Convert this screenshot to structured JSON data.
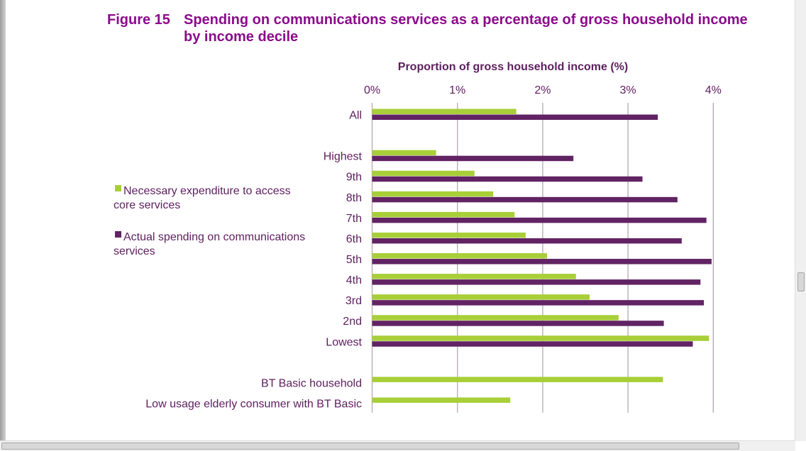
{
  "figure": {
    "number": "Figure 15",
    "title": "Spending on communications services as a percentage of gross household income by income decile"
  },
  "colors": {
    "title": "#8b0a8b",
    "text": "#5f2060",
    "necessary": "#a8cf38",
    "actual": "#612363",
    "grid": "#b8a6b8"
  },
  "chart_data": {
    "type": "bar",
    "orientation": "horizontal",
    "title": "Spending on communications services as a percentage of gross household income by income decile",
    "xlabel": "Proportion of gross household income (%)",
    "xlabel_position": "top",
    "ylabel": "",
    "xlim": [
      0,
      4
    ],
    "xticks": [
      0,
      1,
      2,
      3,
      4
    ],
    "xtick_labels": [
      "0%",
      "1%",
      "2%",
      "3%",
      "4%"
    ],
    "grid": "vertical",
    "legend_position": "left",
    "categories": [
      "All",
      "",
      "Highest",
      "9th",
      "8th",
      "7th",
      "6th",
      "5th",
      "4th",
      "3rd",
      "2nd",
      "Lowest",
      "",
      "BT Basic household",
      "Low usage elderly consumer with BT Basic"
    ],
    "series": [
      {
        "name": "Necessary expenditure to access core services",
        "color": "#a8cf38",
        "values": [
          1.69,
          null,
          0.75,
          1.2,
          1.42,
          1.67,
          1.8,
          2.05,
          2.39,
          2.55,
          2.89,
          3.95,
          null,
          3.41,
          1.62
        ]
      },
      {
        "name": "Actual spending on communications services",
        "color": "#612363",
        "values": [
          3.35,
          null,
          2.36,
          3.17,
          3.58,
          3.92,
          3.63,
          3.98,
          3.85,
          3.89,
          3.42,
          3.76,
          null,
          null,
          null
        ]
      }
    ]
  },
  "legend": {
    "items": [
      {
        "lines": [
          "Necessary expenditure to access",
          "core services"
        ],
        "color": "#a8cf38"
      },
      {
        "lines": [
          "Actual spending on communications",
          "services"
        ],
        "color": "#612363"
      }
    ]
  }
}
